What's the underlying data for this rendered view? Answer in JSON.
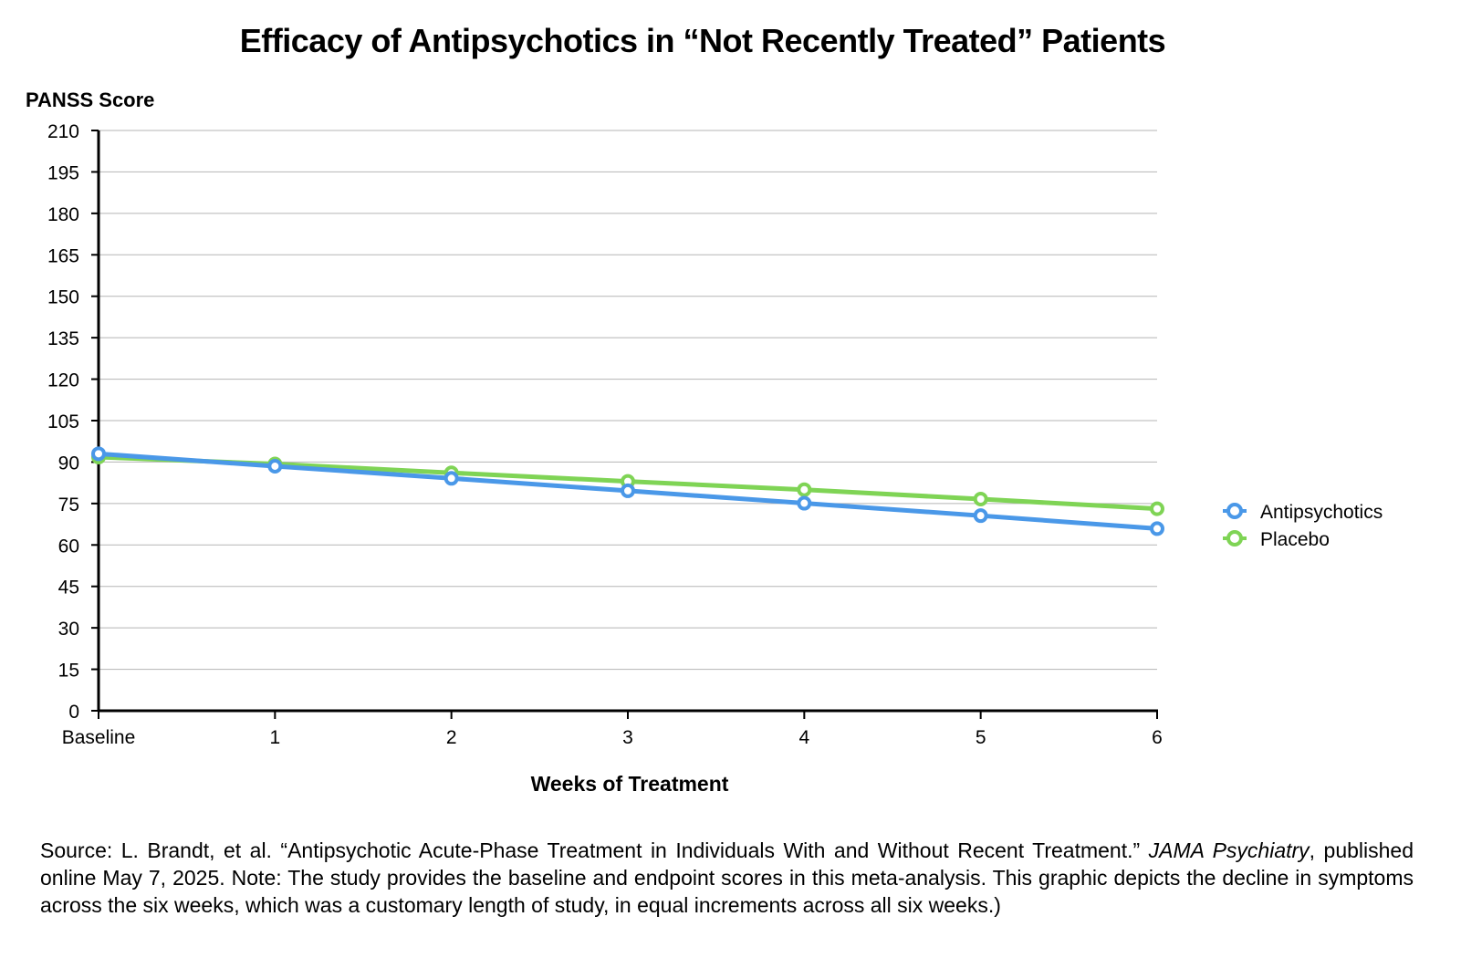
{
  "chart_data": {
    "type": "line",
    "title": "Efficacy of Antipsychotics in “Not Recently Treated” Patients",
    "ylabel": "PANSS Score",
    "xlabel": "Weeks of Treatment",
    "categories": [
      "Baseline",
      "1",
      "2",
      "3",
      "4",
      "5",
      "6"
    ],
    "yticks": [
      0,
      15,
      30,
      45,
      60,
      75,
      90,
      105,
      120,
      135,
      150,
      165,
      180,
      195,
      210
    ],
    "ylim": [
      0,
      210
    ],
    "grid": true,
    "legend_position": "right",
    "series": [
      {
        "name": "Antipsychotics",
        "color": "#4a98e8",
        "values": [
          93.0,
          88.5,
          84.1,
          79.6,
          75.1,
          70.6,
          65.9
        ]
      },
      {
        "name": "Placebo",
        "color": "#7fd455",
        "values": [
          91.8,
          89.3,
          86.1,
          83.0,
          80.0,
          76.6,
          73.1
        ]
      }
    ]
  },
  "source": {
    "prefix": "Source:  L. Brandt, et al. “Antipsychotic Acute-Phase Treatment in Individuals With and Without Recent Treatment.” ",
    "journal": "JAMA Psychiatry",
    "suffix": ", published online May 7, 2025. Note: The study provides the baseline and endpoint scores in this meta-analysis. This graphic depicts the decline in symptoms across the six weeks, which was a customary length of study, in equal increments across all six weeks.)"
  }
}
